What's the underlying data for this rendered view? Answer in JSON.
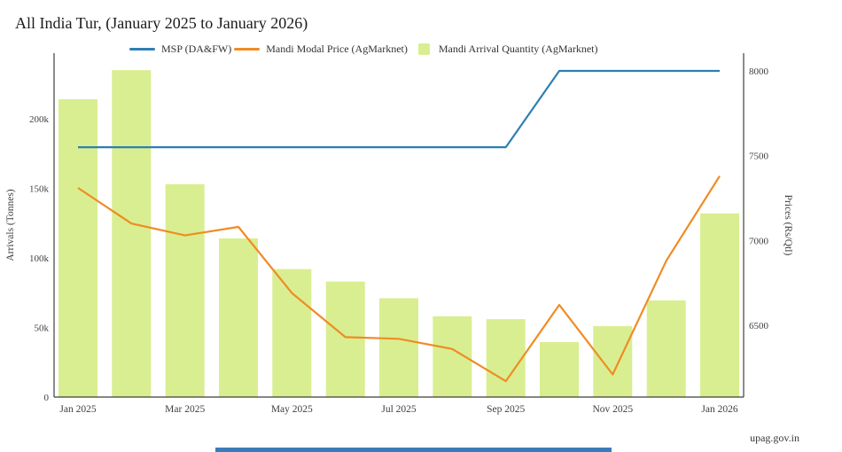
{
  "title": "All India Tur, (January 2025 to January 2026)",
  "footer": {
    "source": "upag.gov.in"
  },
  "legend": {
    "items": [
      {
        "label": "MSP (DA&FW)",
        "type": "line",
        "color": "#2e7fb2"
      },
      {
        "label": "Mandi Modal Price (AgMarknet)",
        "type": "line",
        "color": "#ef8c25"
      },
      {
        "label": "Mandi Arrival Quantity (AgMarknet)",
        "type": "square",
        "color": "#d9ee91"
      }
    ]
  },
  "chart_data": {
    "type": "bar",
    "subtype": "bars with two overlay lines, dual y-axes",
    "categories": [
      "Jan 2025",
      "Feb 2025",
      "Mar 2025",
      "Apr 2025",
      "May 2025",
      "Jun 2025",
      "Jul 2025",
      "Aug 2025",
      "Sep 2025",
      "Oct 2025",
      "Nov 2025",
      "Dec 2025",
      "Jan 2026"
    ],
    "x_tick_labels_shown": [
      "Jan 2025",
      "Mar 2025",
      "May 2025",
      "Jul 2025",
      "Sep 2025",
      "Nov 2025",
      "Jan 2026"
    ],
    "series": [
      {
        "name": "MSP (DA&FW)",
        "type": "line",
        "axis": "right",
        "color": "#2e7fb2",
        "values": [
          7550,
          7550,
          7550,
          7550,
          7550,
          7550,
          7550,
          7550,
          7550,
          8000,
          8000,
          8000,
          8000
        ]
      },
      {
        "name": "Mandi Modal Price (AgMarknet)",
        "type": "line",
        "axis": "right",
        "color": "#ef8c25",
        "values": [
          7310,
          7100,
          7030,
          7080,
          6690,
          6430,
          6420,
          6360,
          6170,
          6620,
          6210,
          6880,
          7380
        ]
      },
      {
        "name": "Mandi Arrival Quantity (AgMarknet)",
        "type": "bar",
        "axis": "left",
        "color": "#d9ee91",
        "values": [
          214000,
          235000,
          153000,
          114000,
          92000,
          83000,
          71000,
          58000,
          56000,
          39500,
          51000,
          69500,
          132000
        ]
      }
    ],
    "left_axis": {
      "label": "Arrivals (Tonnes)",
      "ticks": [
        "0",
        "50k",
        "100k",
        "150k",
        "200k"
      ],
      "tick_values": [
        0,
        50000,
        100000,
        150000,
        200000
      ],
      "min": 0,
      "max": 247000
    },
    "right_axis": {
      "label": "Prices (Rs/Qtl)",
      "ticks": [
        "6500",
        "7000",
        "7500",
        "8000"
      ],
      "tick_values": [
        6500,
        7000,
        7500,
        8000
      ],
      "min": 6075,
      "max": 8105
    },
    "grid": false,
    "legend_position": "top"
  }
}
